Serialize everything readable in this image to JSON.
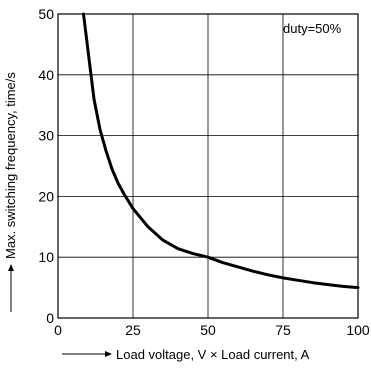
{
  "chart_data": {
    "type": "line",
    "xlabel": "Load voltage, V × Load current, A",
    "ylabel": "Max. switching frequency, time/s",
    "annotation": "duty=50%",
    "xlim": [
      0,
      100
    ],
    "ylim": [
      0,
      50
    ],
    "x_ticks": [
      "0",
      "25",
      "50",
      "75",
      "100"
    ],
    "y_ticks": [
      "0",
      "10",
      "20",
      "30",
      "40",
      "50"
    ],
    "grid": true,
    "series": [
      {
        "x": [
          8.5,
          10,
          12,
          14,
          16,
          18,
          20,
          22,
          25,
          30,
          35,
          40,
          45,
          50,
          55,
          60,
          65,
          70,
          75,
          80,
          85,
          90,
          95,
          100
        ],
        "y": [
          50,
          44,
          36,
          31,
          27.5,
          24.5,
          22.2,
          20.4,
          18,
          15,
          12.8,
          11.4,
          10.6,
          10,
          9.1,
          8.4,
          7.7,
          7.1,
          6.6,
          6.2,
          5.8,
          5.5,
          5.2,
          5
        ]
      }
    ]
  }
}
